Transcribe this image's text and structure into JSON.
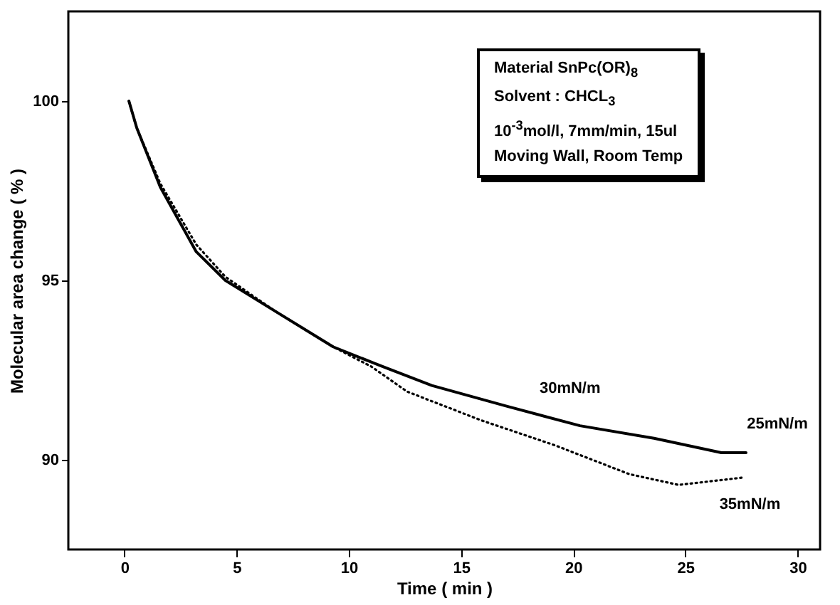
{
  "chart_data": {
    "type": "line",
    "xlabel": "Time ( min )",
    "ylabel": "Molecular area change ( % )",
    "xlim": [
      -2.5,
      31
    ],
    "ylim": [
      87.5,
      102.5
    ],
    "xticks": [
      0,
      5,
      10,
      15,
      20,
      25,
      30
    ],
    "yticks": [
      90,
      95,
      100
    ],
    "grid": false,
    "series": [
      {
        "color": "#000000",
        "line_style": "solid",
        "x": [
          0.2,
          0.55,
          1.6,
          3.2,
          4.5,
          6.7,
          9.3,
          11.5,
          13.7,
          17,
          20.3,
          23.6,
          26.6,
          27.7
        ],
        "values": [
          100,
          99.25,
          97.6,
          95.8,
          95.0,
          94.15,
          93.15,
          92.6,
          92.07,
          91.5,
          90.95,
          90.6,
          90.2,
          90.2
        ]
      },
      {
        "color": "#000000",
        "line_style": "dotted",
        "x": [
          0.2,
          0.55,
          1.6,
          3.2,
          4.5,
          6.7,
          9.3,
          11.0,
          12.6,
          15.9,
          19.2,
          22.5,
          24.7,
          27.5
        ],
        "values": [
          100,
          99.25,
          97.7,
          96.0,
          95.1,
          94.15,
          93.15,
          92.6,
          91.9,
          91.1,
          90.4,
          89.6,
          89.3,
          89.5
        ]
      }
    ],
    "annotations": [
      {
        "text": "30mN/m",
        "x": 17,
        "y": 91.5
      },
      {
        "text": "25mN/m",
        "x": 27.7,
        "y": 90.2
      },
      {
        "text": "35mN/m",
        "x": 24.7,
        "y": 89.3
      },
      "Material SnPc(OR)$_{8}$",
      "Solvent : CHCL$_{3}$",
      "10$^{-3}$mol/l, 7mm/min, 15ul",
      "Moving Wall, Room Temp"
    ]
  }
}
